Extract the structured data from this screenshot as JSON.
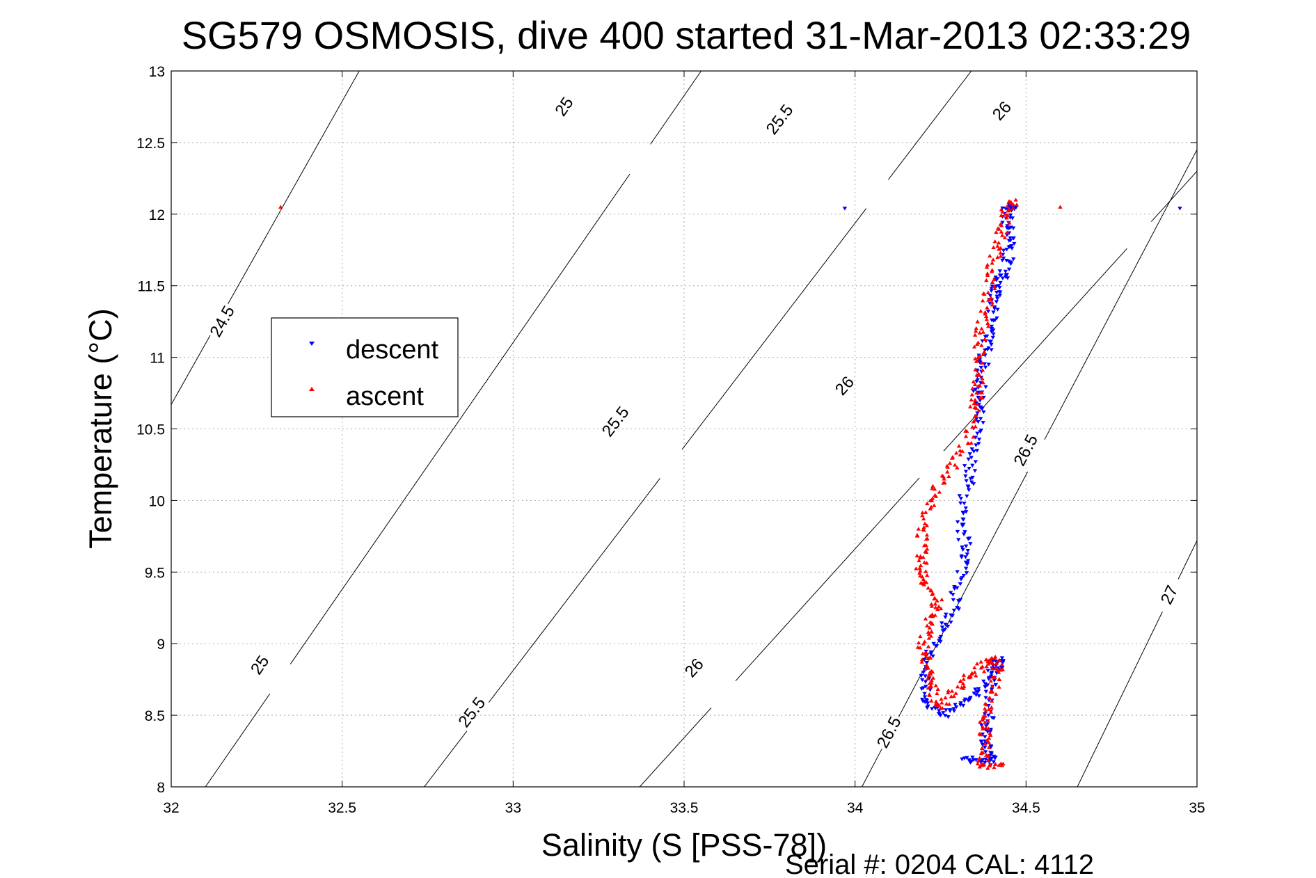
{
  "chart_data": {
    "type": "scatter",
    "title": "SG579 OSMOSIS, dive 400 started 31-Mar-2013 02:33:29",
    "xlabel": "Salinity (S [PSS-78])",
    "ylabel": "Temperature (°C)",
    "footer": "Serial #: 0204  CAL: 4112",
    "xlim": [
      32,
      35
    ],
    "ylim": [
      8,
      13
    ],
    "xticks": [
      32,
      32.5,
      33,
      33.5,
      34,
      34.5,
      35
    ],
    "xtick_labels": [
      "32",
      "32.5",
      "33",
      "33.5",
      "34",
      "34.5",
      "35"
    ],
    "yticks": [
      8,
      8.5,
      9,
      9.5,
      10,
      10.5,
      11,
      11.5,
      12,
      12.5,
      13
    ],
    "ytick_labels": [
      "8",
      "8.5",
      "9",
      "9.5",
      "10",
      "10.5",
      "11",
      "11.5",
      "12",
      "12.5",
      "13"
    ],
    "grid": true,
    "legend_position": "left",
    "legend": [
      {
        "label": "descent",
        "color": "#0000ff",
        "marker": "triangle-down"
      },
      {
        "label": "ascent",
        "color": "#ff0000",
        "marker": "triangle-up"
      }
    ],
    "density_contours": [
      {
        "sigma": 24.5,
        "line": [
          [
            32.0,
            10.67
          ],
          [
            32.55,
            13.0
          ]
        ],
        "labels": [
          {
            "text": "24.5",
            "x": 32.15,
            "y": 11.25
          }
        ]
      },
      {
        "sigma": 25.0,
        "line": [
          [
            32.1,
            8.0
          ],
          [
            33.55,
            13.0
          ]
        ],
        "labels": [
          {
            "text": "25",
            "x": 32.26,
            "y": 8.85
          },
          {
            "text": "25",
            "x": 33.15,
            "y": 12.75
          }
        ]
      },
      {
        "sigma": 25.5,
        "line": [
          [
            32.74,
            8.0
          ],
          [
            34.34,
            13.0
          ]
        ],
        "labels": [
          {
            "text": "25.5",
            "x": 32.88,
            "y": 8.52
          },
          {
            "text": "25.5",
            "x": 33.3,
            "y": 10.55
          },
          {
            "text": "25.5",
            "x": 33.78,
            "y": 12.66
          }
        ]
      },
      {
        "sigma": 26.0,
        "line": [
          [
            33.37,
            8.0
          ],
          [
            35.0,
            12.3
          ]
        ],
        "labels": [
          {
            "text": "26",
            "x": 33.53,
            "y": 8.83
          },
          {
            "text": "26",
            "x": 33.97,
            "y": 10.8
          },
          {
            "text": "26",
            "x": 34.43,
            "y": 12.72
          }
        ]
      },
      {
        "sigma": 26.5,
        "line": [
          [
            34.02,
            8.0
          ],
          [
            35.0,
            12.45
          ]
        ],
        "labels": [
          {
            "text": "26.5",
            "x": 34.1,
            "y": 8.38
          },
          {
            "text": "26.5",
            "x": 34.5,
            "y": 10.35
          }
        ]
      },
      {
        "sigma": 27.0,
        "line": [
          [
            34.65,
            8.0
          ],
          [
            35.0,
            9.72
          ]
        ],
        "labels": [
          {
            "text": "27",
            "x": 34.92,
            "y": 9.34
          }
        ]
      }
    ],
    "series": [
      {
        "name": "descent",
        "color": "#0000ff",
        "marker": "triangle-down",
        "path": [
          [
            33.97,
            12.04
          ],
          [
            34.95,
            12.04
          ],
          [
            34.47,
            12.05
          ],
          [
            34.44,
            12.04
          ],
          [
            34.45,
            11.9
          ],
          [
            34.45,
            11.77
          ],
          [
            34.44,
            11.6
          ],
          [
            34.42,
            11.5
          ],
          [
            34.4,
            11.4
          ],
          [
            34.4,
            11.2
          ],
          [
            34.38,
            11.05
          ],
          [
            34.37,
            10.9
          ],
          [
            34.36,
            10.72
          ],
          [
            34.36,
            10.55
          ],
          [
            34.34,
            10.3
          ],
          [
            34.33,
            10.1
          ],
          [
            34.3,
            9.85
          ],
          [
            34.33,
            9.65
          ],
          [
            34.31,
            9.45
          ],
          [
            34.28,
            9.2
          ],
          [
            34.23,
            9.0
          ],
          [
            34.2,
            8.8
          ],
          [
            34.21,
            8.6
          ],
          [
            34.25,
            8.5
          ],
          [
            34.32,
            8.6
          ],
          [
            34.38,
            8.7
          ],
          [
            34.43,
            8.9
          ],
          [
            34.4,
            8.8
          ],
          [
            34.39,
            8.5
          ],
          [
            34.38,
            8.35
          ],
          [
            34.4,
            8.2
          ],
          [
            34.38,
            8.17
          ],
          [
            34.32,
            8.2
          ]
        ]
      },
      {
        "name": "ascent",
        "color": "#ff0000",
        "marker": "triangle-up",
        "path": [
          [
            32.32,
            12.05
          ],
          [
            34.6,
            12.05
          ],
          [
            34.47,
            12.1
          ],
          [
            34.44,
            12.0
          ],
          [
            34.42,
            11.8
          ],
          [
            34.4,
            11.6
          ],
          [
            34.39,
            11.4
          ],
          [
            34.37,
            11.2
          ],
          [
            34.36,
            11.0
          ],
          [
            34.36,
            10.8
          ],
          [
            34.35,
            10.65
          ],
          [
            34.33,
            10.4
          ],
          [
            34.27,
            10.2
          ],
          [
            34.22,
            10.0
          ],
          [
            34.2,
            9.8
          ],
          [
            34.19,
            9.6
          ],
          [
            34.2,
            9.45
          ],
          [
            34.24,
            9.3
          ],
          [
            34.22,
            9.15
          ],
          [
            34.2,
            9.0
          ],
          [
            34.21,
            8.85
          ],
          [
            34.22,
            8.7
          ],
          [
            34.25,
            8.55
          ],
          [
            34.3,
            8.7
          ],
          [
            34.35,
            8.8
          ],
          [
            34.4,
            8.9
          ],
          [
            34.42,
            8.8
          ],
          [
            34.4,
            8.6
          ],
          [
            34.38,
            8.45
          ],
          [
            34.38,
            8.3
          ],
          [
            34.37,
            8.15
          ],
          [
            34.43,
            8.15
          ]
        ]
      }
    ]
  }
}
